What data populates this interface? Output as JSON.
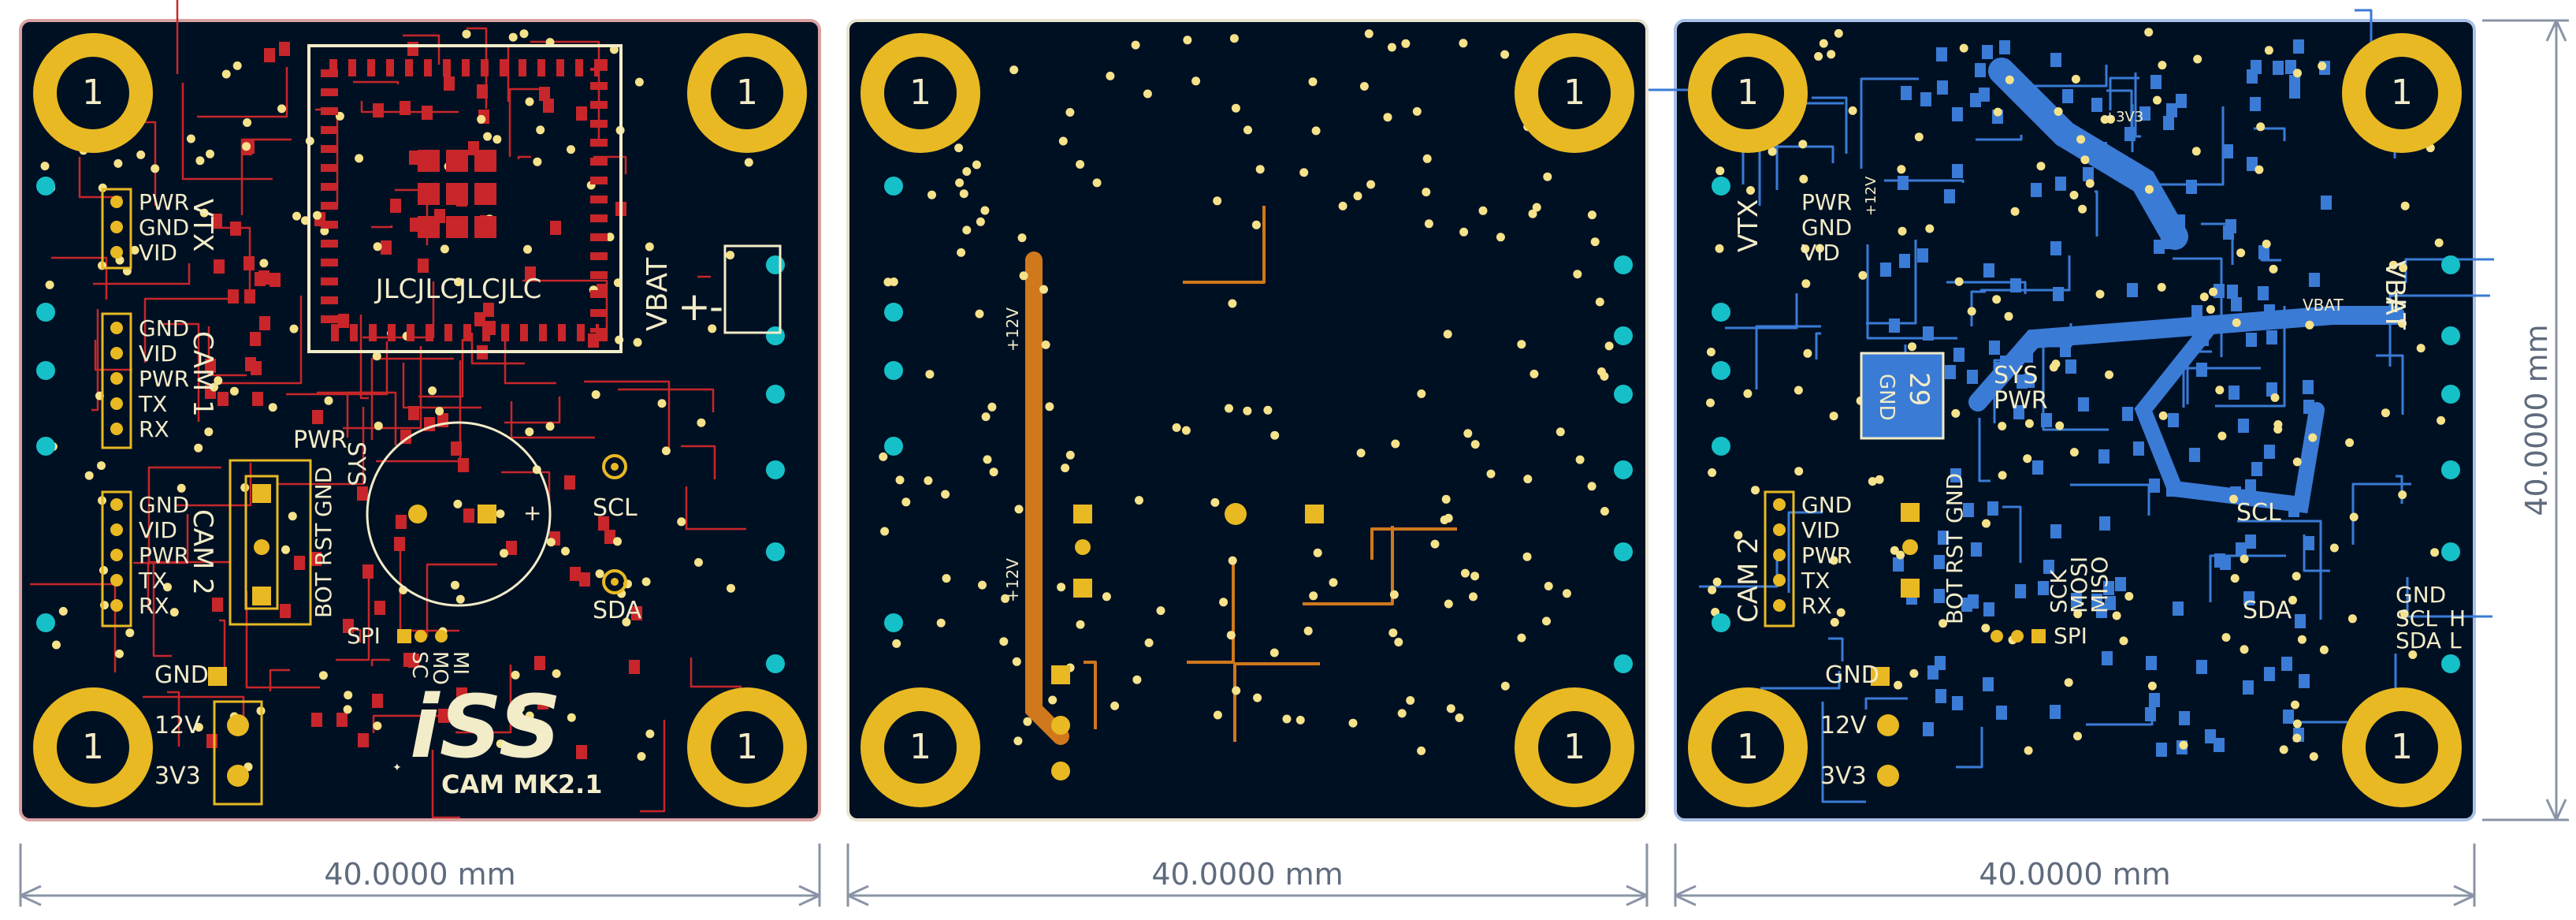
{
  "colors": {
    "background": "#ffffff",
    "board": "#001023",
    "board_edge_front": "#d9a2a2",
    "board_edge_inner": "#e8e4d0",
    "board_edge_back": "#a9c1e6",
    "copper_front": "#c8262a",
    "copper_inner": "#d0781c",
    "copper_back": "#3a7bd6",
    "pad_gold": "#e8b923",
    "silkscreen": "#f2ecc8",
    "dimension_line": "#8a94a6",
    "via_cyan": "#16c0c8",
    "via_fill": "#f5e28a"
  },
  "dimensions": {
    "front": "40.0000 mm",
    "inner": "40.0000 mm",
    "back": "40.0000 mm",
    "vertical": "40.0000 mm"
  },
  "front_view": {
    "connectors": {
      "vtx": {
        "title": "VTX",
        "pins": [
          "PWR",
          "GND",
          "VID"
        ]
      },
      "cam1": {
        "title": "CAM 1",
        "pins": [
          "GND",
          "VID",
          "PWR",
          "TX",
          "RX"
        ]
      },
      "cam2": {
        "title": "CAM 2",
        "pins": [
          "GND",
          "VID",
          "PWR",
          "TX",
          "RX"
        ]
      }
    },
    "labels": {
      "sys": "SYS",
      "pwr": "PWR",
      "boot": "BOT",
      "rst": "RST",
      "gnd": "GND",
      "spi": "SPI",
      "sc": "SC",
      "mo": "MO",
      "mi": "MI",
      "scl": "SCL",
      "sda": "SDA",
      "vbat": "VBAT",
      "plus": "+",
      "minus": "-",
      "gnd_power": "GND",
      "v12": "12V",
      "v3v3": "3V3",
      "chip_silk": "JLCJLCJLCJLC",
      "logo": "iSS",
      "product": "CAM MK2.1"
    },
    "mounting_hole": "1"
  },
  "inner_view": {
    "net_labels": [
      "+12V",
      "+12V"
    ],
    "mounting_hole": "1"
  },
  "back_view": {
    "connectors": {
      "vtx": {
        "title": "VTX",
        "pins": [
          "PWR",
          "GND",
          "VID"
        ]
      },
      "cam2": {
        "title": "CAM 2",
        "pins": [
          "GND",
          "VID",
          "PWR",
          "TX",
          "RX"
        ]
      }
    },
    "labels": {
      "sys": "SYS",
      "pwr": "PWR",
      "boot": "BOT",
      "rst": "RST",
      "gnd": "GND",
      "spi": "SPI",
      "sck": "SCK",
      "mosi": "MOSI",
      "miso": "MISO",
      "scl": "SCL",
      "sda": "SDA",
      "vbat": "VBAT",
      "vbat_net": "VBAT",
      "i2c_gnd": "GND",
      "i2c_scl": "SCL",
      "i2c_sda": "SDA",
      "h": "H",
      "l": "L",
      "gnd_power": "GND",
      "v12": "12V",
      "v3v3": "3V3",
      "chip_id": "29",
      "chip_gnd": "GND",
      "plus": "+",
      "net_12v": "+12V",
      "net_3v3": "+3V3"
    },
    "mounting_hole": "1"
  }
}
